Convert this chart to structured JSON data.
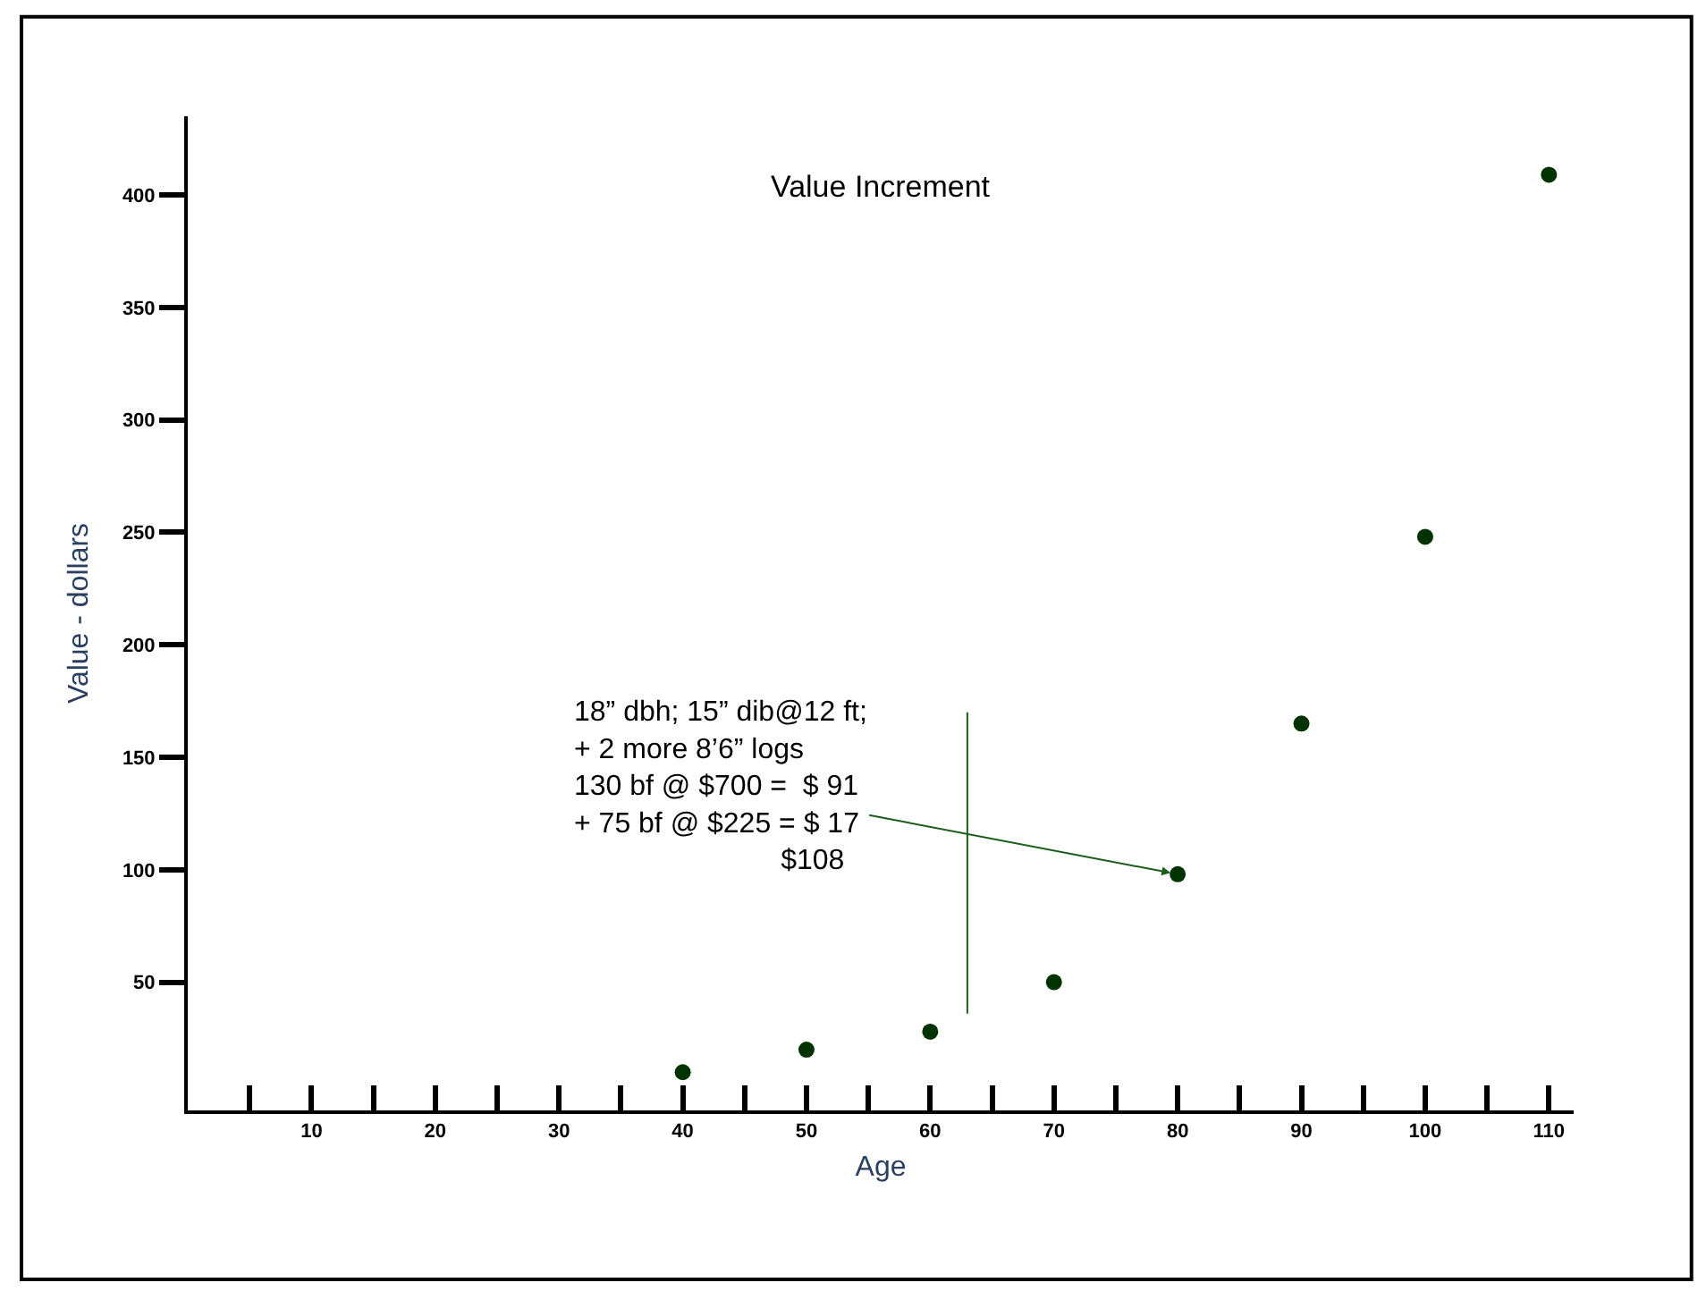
{
  "chart_data": {
    "type": "scatter",
    "title": "Value Increment",
    "xlabel": "Age",
    "ylabel": "Value - dollars",
    "x": [
      40,
      50,
      60,
      70,
      80,
      90,
      100,
      110
    ],
    "series": [
      {
        "color": "#003300",
        "values": [
          10,
          20,
          28,
          50,
          98,
          165,
          248,
          409
        ]
      }
    ],
    "xlim": [
      0,
      112
    ],
    "xticks": [
      {
        "value": 5,
        "label": null
      },
      10,
      {
        "value": 15,
        "label": null
      },
      20,
      {
        "value": 25,
        "label": null
      },
      30,
      {
        "value": 35,
        "label": null
      },
      40,
      {
        "value": 45,
        "label": null
      },
      50,
      {
        "value": 55,
        "label": null
      },
      60,
      {
        "value": 65,
        "label": null
      },
      70,
      {
        "value": 75,
        "label": null
      },
      80,
      {
        "value": 85,
        "label": null
      },
      90,
      {
        "value": 95,
        "label": null
      },
      100,
      {
        "value": 105,
        "label": null
      },
      110
    ],
    "ylim": [
      -7,
      435
    ],
    "yticks": [
      50,
      100,
      150,
      200,
      250,
      300,
      350,
      400
    ],
    "annotations": [
      {
        "text": "18” dbh; 15” dib@12 ft;\n+ 2 more 8’6” logs\n130 bf @ $700 =  $ 91\n+ 75 bf @ $225 = $ 17\n                          $108",
        "x": 80,
        "y": 98
      }
    ],
    "marker": "circle"
  }
}
